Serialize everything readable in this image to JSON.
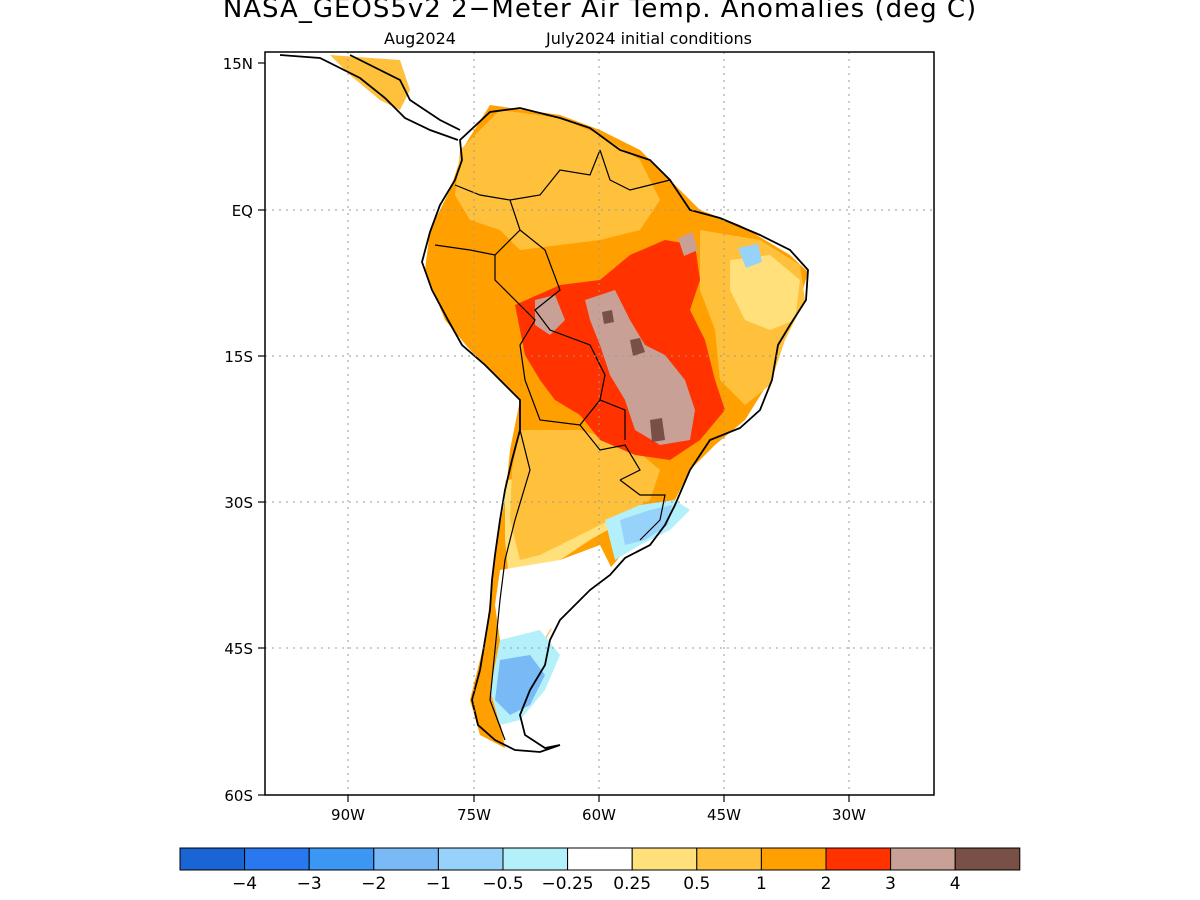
{
  "title": "NASA_GEOS5v2 2−Meter Air Temp. Anomalies (deg C)",
  "subtitle_left": "Aug2024",
  "subtitle_right": "July2024 initial conditions",
  "lat_ticks": [
    "15N",
    "EQ",
    "15S",
    "30S",
    "45S",
    "60S"
  ],
  "lon_ticks": [
    "90W",
    "75W",
    "60W",
    "45W",
    "30W"
  ],
  "colorbar": {
    "colors": [
      "#1a64d4",
      "#2a78f0",
      "#3c96f4",
      "#78b9f6",
      "#96d2fa",
      "#b4f0fa",
      "#ffffff",
      "#ffe07a",
      "#ffc03c",
      "#ffa000",
      "#ff3200",
      "#c8a096",
      "#785046"
    ],
    "labels": [
      "−4",
      "−3",
      "−2",
      "−1",
      "−0.5",
      "−0.25",
      "0.25",
      "0.5",
      "1",
      "2",
      "3",
      "4"
    ]
  },
  "map": {
    "lat_range": [
      -60,
      15
    ],
    "lon_range": [
      -100,
      -20
    ],
    "grid": true,
    "colors": {
      "pos_0_5": "#ffe07a",
      "pos_1": "#ffc03c",
      "pos_2": "#ffa000",
      "pos_3": "#ff3200",
      "pos_4": "#c8a096",
      "pos_5": "#785046",
      "neg_0_5": "#96d2fa",
      "neg_1": "#78b9f6",
      "neutral": "#ffffff"
    }
  }
}
